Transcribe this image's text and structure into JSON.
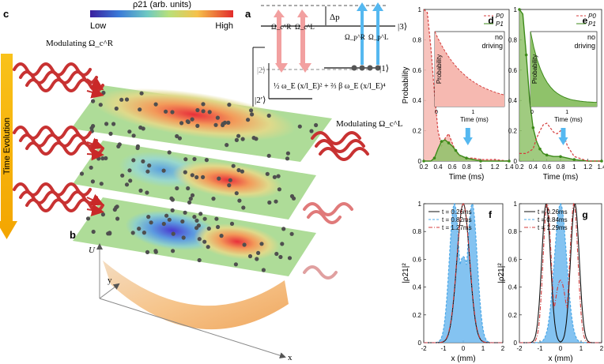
{
  "labels": {
    "a": "a",
    "b": "b",
    "c": "c",
    "d": "d",
    "e": "e",
    "f": "f",
    "g": "g"
  },
  "colorbar": {
    "title": "ρ21 (arb. units)",
    "low": "Low",
    "high": "High"
  },
  "panel_c": {
    "time_arrow": "Time Evolution",
    "mod_left": "Modulating Ω_c^R",
    "mod_right": "Modulating Ω_c^L"
  },
  "panel_a": {
    "delta": "Δp",
    "ket3": "|3⟩",
    "ket2": "|2⟩",
    "ket1": "|1⟩",
    "ket2p": "|2′⟩",
    "omega_cR": "Ω_c^R",
    "omega_cL": "Ω_c^L",
    "omega_pR": "Ω_p^R",
    "omega_pL": "Ω_p^L",
    "potential": "½ ω_E (x/l_E)² + ⅔ β ω_E (x/l_E)⁴"
  },
  "panel_b": {
    "u": "U",
    "y": "y",
    "x": "x"
  },
  "colors": {
    "p0": "#d43d3d",
    "p1": "#3d8a1a",
    "fill_red": "#f6b9b1",
    "fill_green": "#8fc26a",
    "blue": "#4aa8e8",
    "arrow_blue": "#55b8f0",
    "dark": "#5a0e0e"
  },
  "chart_data": [
    {
      "id": "d",
      "type": "line",
      "xlabel": "Time (ms)",
      "ylabel": "Probability",
      "xlim": [
        0.2,
        1.4
      ],
      "ylim": [
        0,
        1
      ],
      "xticks": [
        "0.2",
        "0.4",
        "0.6",
        "0.8",
        "1",
        "1.2",
        "1.4"
      ],
      "yticks": [
        "0",
        "0.2",
        "0.4",
        "0.6",
        "0.8",
        "1"
      ],
      "series": [
        {
          "name": "P0",
          "x": [
            0.2,
            0.25,
            0.3,
            0.35,
            0.4,
            0.45,
            0.5,
            0.55,
            0.6,
            0.65,
            0.7,
            0.8,
            0.9,
            1.0,
            1.2,
            1.4
          ],
          "y": [
            1.0,
            0.98,
            0.75,
            0.45,
            0.2,
            0.1,
            0.15,
            0.18,
            0.12,
            0.06,
            0.03,
            0.02,
            0.02,
            0.01,
            0.01,
            0.0
          ]
        },
        {
          "name": "P1",
          "x": [
            0.2,
            0.3,
            0.35,
            0.4,
            0.45,
            0.5,
            0.55,
            0.6,
            0.65,
            0.7,
            0.8,
            0.9,
            1.0,
            1.2,
            1.4
          ],
          "y": [
            0.0,
            0.0,
            0.02,
            0.08,
            0.13,
            0.14,
            0.12,
            0.1,
            0.07,
            0.04,
            0.02,
            0.01,
            0.0,
            0.0,
            0.0
          ]
        }
      ],
      "inset": {
        "label": "no driving",
        "ylabel": "Probability",
        "xlabel": "Time (ms)",
        "xticks": [
          "0",
          "1"
        ],
        "series": "P0"
      },
      "annotation": "arrow at t = 0.82 ms"
    },
    {
      "id": "e",
      "type": "line",
      "xlabel": "Time (ms)",
      "ylabel": "",
      "xlim": [
        0.2,
        1.4
      ],
      "ylim": [
        0,
        1
      ],
      "xticks": [
        "0.2",
        "0.4",
        "0.6",
        "0.8",
        "1",
        "1.2",
        "1.4"
      ],
      "yticks": [
        "0",
        "0.2",
        "0.4",
        "0.6",
        "0.8",
        "1"
      ],
      "series": [
        {
          "name": "P0",
          "x": [
            0.2,
            0.3,
            0.4,
            0.45,
            0.5,
            0.55,
            0.6,
            0.65,
            0.7,
            0.75,
            0.8,
            0.85,
            0.9,
            1.0,
            1.2,
            1.4
          ],
          "y": [
            0.05,
            0.05,
            0.08,
            0.15,
            0.2,
            0.24,
            0.25,
            0.22,
            0.19,
            0.18,
            0.2,
            0.17,
            0.1,
            0.03,
            0.0,
            0.0
          ]
        },
        {
          "name": "P1",
          "x": [
            0.2,
            0.25,
            0.3,
            0.35,
            0.4,
            0.45,
            0.5,
            0.55,
            0.6,
            0.7,
            0.8,
            0.9,
            1.0,
            1.2,
            1.4
          ],
          "y": [
            1.0,
            0.97,
            0.7,
            0.4,
            0.22,
            0.13,
            0.08,
            0.05,
            0.04,
            0.03,
            0.03,
            0.02,
            0.01,
            0.0,
            0.0
          ]
        }
      ],
      "inset": {
        "label": "no driving",
        "ylabel": "Probability",
        "xlabel": "Time (ms)",
        "xticks": [
          "0",
          "1"
        ],
        "series": "P1"
      },
      "annotation": "arrow at t = 0.84 ms"
    },
    {
      "id": "f",
      "type": "line",
      "xlabel": "x (mm)",
      "ylabel": "|ρ21|²",
      "xlim": [
        -2,
        2
      ],
      "ylim": [
        0,
        1
      ],
      "xticks": [
        "-2",
        "-1",
        "0",
        "1",
        "2"
      ],
      "yticks": [
        "0",
        "0.2",
        "0.4",
        "0.6",
        "0.8",
        "1"
      ],
      "series": [
        {
          "name": "t = 0.26ms",
          "style": "solid",
          "center": 0,
          "sigma": 0.45,
          "amp": 1.0,
          "sep": 0
        },
        {
          "name": "t = 0.82ms",
          "style": "dashed-filled",
          "center": 0,
          "sigma": 0.36,
          "amp": 1.0,
          "sep": 0.45,
          "dip": 0.62
        },
        {
          "name": "t = 1.27ms",
          "style": "dashdot",
          "center": 0,
          "sigma": 0.46,
          "amp": 1.0,
          "sep": 0
        }
      ]
    },
    {
      "id": "g",
      "type": "line",
      "xlabel": "x (mm)",
      "ylabel": "|ρ21|²",
      "xlim": [
        -2,
        2
      ],
      "ylim": [
        0,
        1
      ],
      "xticks": [
        "-2",
        "-1",
        "0",
        "1",
        "2"
      ],
      "yticks": [
        "0",
        "0.2",
        "0.4",
        "0.6",
        "0.8",
        "1"
      ],
      "series": [
        {
          "name": "t = 0.26ms",
          "style": "solid",
          "center": 0,
          "sigma": 0.3,
          "amp": 1.0,
          "sep": 0.7,
          "dip": 0.0
        },
        {
          "name": "t = 0.84ms",
          "style": "dashed-filled",
          "center": 0,
          "sigma": 0.42,
          "amp": 1.0,
          "sep": 0,
          "dip": 1.0
        },
        {
          "name": "t = 1.29ms",
          "style": "dashdot",
          "center": 0,
          "sigma": 0.28,
          "amp": 1.0,
          "sep": 0.65,
          "dip": 0.45
        }
      ]
    }
  ]
}
